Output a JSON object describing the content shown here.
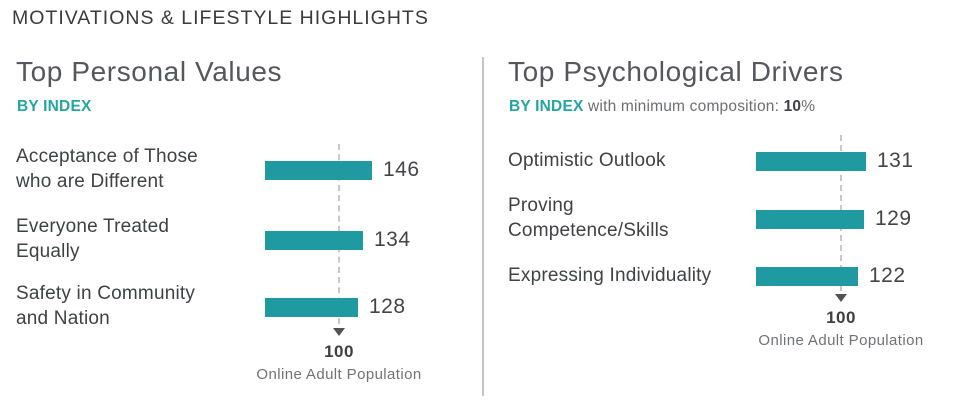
{
  "header": {
    "title": "MOTIVATIONS & LIFESTYLE HIGHLIGHTS"
  },
  "colors": {
    "bar_teal": "#1f9aa0",
    "accent_text_teal": "#23a5a0",
    "label_dark": "#3f4144",
    "muted_gray": "#717276",
    "divider_gray": "#c3c4c6"
  },
  "chart_data": [
    {
      "type": "bar",
      "orientation": "horizontal",
      "title": "Top Personal Values",
      "subtitle": {
        "prefix": "BY INDEX",
        "rest": "",
        "bold": "",
        "suffix": ""
      },
      "categories": [
        "Acceptance of Those who are Different",
        "Everyone Treated Equally",
        "Safety in Community and Nation"
      ],
      "values": [
        146,
        134,
        128
      ],
      "baseline": {
        "value": "100",
        "label": "Online Adult Population"
      },
      "bar_color": "#1f9aa0",
      "xlim": [
        0,
        160
      ],
      "grid": false,
      "legend": "none"
    },
    {
      "type": "bar",
      "orientation": "horizontal",
      "title": "Top Psychological Drivers",
      "subtitle": {
        "prefix": "BY INDEX",
        "rest": " with minimum composition: ",
        "bold": "10",
        "suffix": "%"
      },
      "categories": [
        "Optimistic Outlook",
        "Proving Competence/Skills",
        "Expressing Individuality"
      ],
      "values": [
        131,
        129,
        122
      ],
      "baseline": {
        "value": "100",
        "label": "Online Adult Population"
      },
      "bar_color": "#1f9aa0",
      "xlim": [
        0,
        160
      ],
      "grid": false,
      "legend": "none"
    }
  ]
}
